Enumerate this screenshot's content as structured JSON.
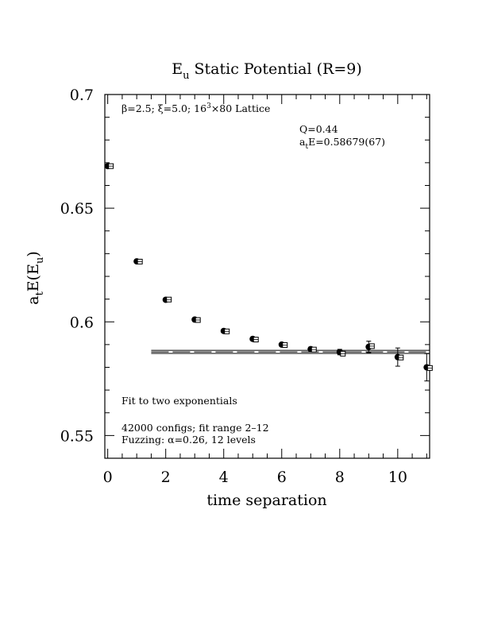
{
  "chart_data": {
    "type": "scatter",
    "title": {
      "main": "E",
      "sub": "u",
      "rest": " Static Potential (R=9)"
    },
    "xlabel": "time separation",
    "ylabel": {
      "a": "a",
      "t": "t",
      "mid": "E(E",
      "u": "u",
      "end": ")"
    },
    "xlim": [
      -0.1,
      11.1
    ],
    "ylim": [
      0.54,
      0.7
    ],
    "x_ticks": [
      0,
      2,
      4,
      6,
      8,
      10
    ],
    "x_tick_labels": [
      "0",
      "2",
      "4",
      "6",
      "8",
      "10"
    ],
    "y_ticks": [
      0.55,
      0.6,
      0.65,
      0.7
    ],
    "y_tick_labels": [
      "0.55",
      "0.6",
      "0.65",
      "0.7"
    ],
    "annotations": {
      "lattice": {
        "beta": "β=2.5; ξ=5.0; 16",
        "sup": "3",
        "rest": "×80 Lattice"
      },
      "q": "Q=0.44",
      "energy": {
        "a": "a",
        "t": "t",
        "rest": "E=0.58679(67)"
      },
      "fit_desc": "Fit to two exponentials",
      "configs": "42000 configs; fit range 2–12",
      "fuzzing": "Fuzzing: α=0.26, 12 levels"
    },
    "series": [
      {
        "marker": "filled-circle",
        "points": [
          {
            "x": 0,
            "y": 0.6685,
            "err": 0.0003
          },
          {
            "x": 1,
            "y": 0.6266,
            "err": 0.0003
          },
          {
            "x": 2,
            "y": 0.6097,
            "err": 0.0003
          },
          {
            "x": 3,
            "y": 0.601,
            "err": 0.0003
          },
          {
            "x": 4,
            "y": 0.596,
            "err": 0.0004
          },
          {
            "x": 5,
            "y": 0.5925,
            "err": 0.0005
          },
          {
            "x": 6,
            "y": 0.59,
            "err": 0.0006
          },
          {
            "x": 7,
            "y": 0.588,
            "err": 0.0008
          },
          {
            "x": 8,
            "y": 0.5867,
            "err": 0.0012
          },
          {
            "x": 9,
            "y": 0.589,
            "err": 0.0025
          },
          {
            "x": 10,
            "y": 0.5845,
            "err": 0.004
          },
          {
            "x": 11,
            "y": 0.58,
            "err": 0.006
          }
        ]
      },
      {
        "marker": "open-square",
        "points": [
          {
            "x": 0,
            "y": 0.6685
          },
          {
            "x": 1,
            "y": 0.6265
          },
          {
            "x": 2,
            "y": 0.6098
          },
          {
            "x": 3,
            "y": 0.6008
          },
          {
            "x": 4,
            "y": 0.5958
          },
          {
            "x": 5,
            "y": 0.5922
          },
          {
            "x": 6,
            "y": 0.5898
          },
          {
            "x": 7,
            "y": 0.5878
          },
          {
            "x": 8,
            "y": 0.586
          },
          {
            "x": 9,
            "y": 0.5893
          },
          {
            "x": 10,
            "y": 0.5843
          },
          {
            "x": 11,
            "y": 0.5797
          }
        ]
      }
    ],
    "fit": {
      "value": 0.58679,
      "error": 0.00067,
      "x_range": [
        1.5,
        11.1
      ]
    }
  }
}
